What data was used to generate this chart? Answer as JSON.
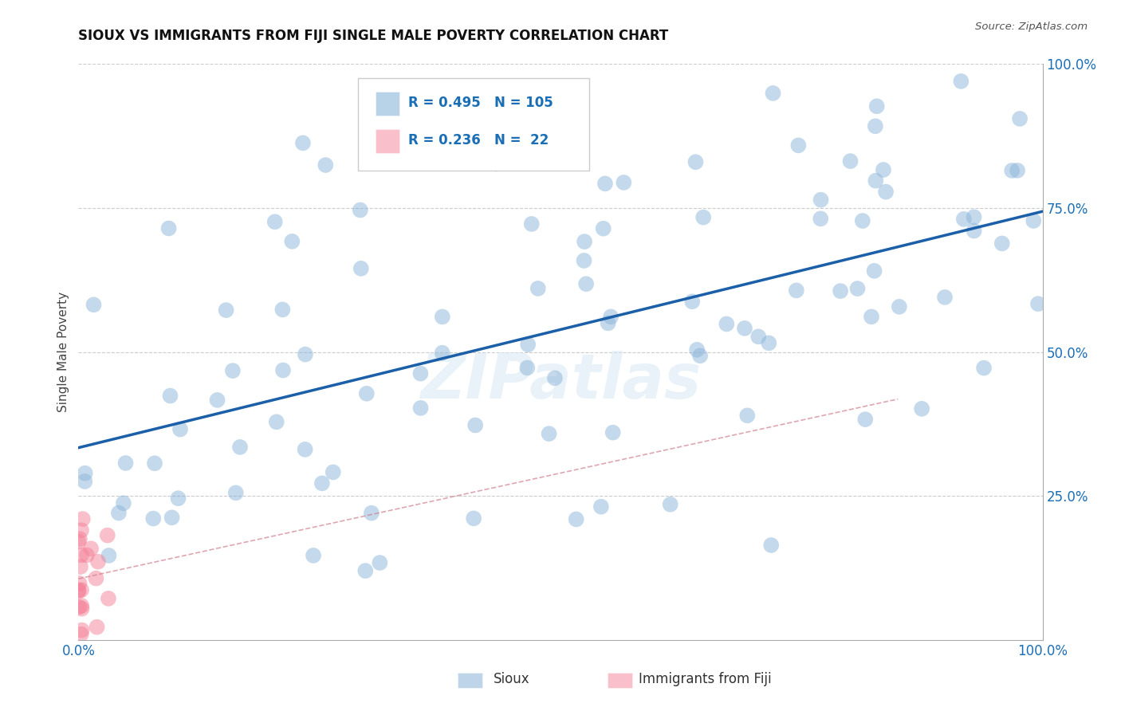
{
  "title": "SIOUX VS IMMIGRANTS FROM FIJI SINGLE MALE POVERTY CORRELATION CHART",
  "source": "Source: ZipAtlas.com",
  "ylabel": "Single Male Poverty",
  "watermark": "ZIPatlas",
  "legend_sioux_R": 0.495,
  "legend_sioux_N": 105,
  "legend_fiji_R": 0.236,
  "legend_fiji_N": 22,
  "blue_color": "#8ab4d8",
  "pink_color": "#f48098",
  "trend_blue_color": "#1a5fa8",
  "trend_fiji_color": "#d08090",
  "grid_color": "#cccccc",
  "background": "#ffffff",
  "title_color": "#111111",
  "source_color": "#555555",
  "tick_color": "#1a6eb5",
  "ylabel_color": "#444444",
  "legend_text_color": "#1a6eb5"
}
